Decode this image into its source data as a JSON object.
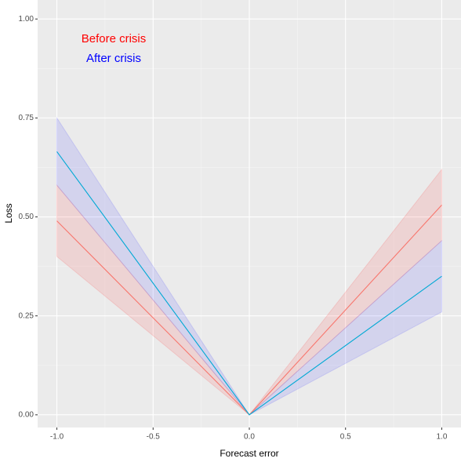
{
  "chart_data": {
    "type": "ribbon-line",
    "x": [
      -1.0,
      0.0,
      1.0
    ],
    "series": [
      {
        "name": "Before crisis",
        "color": "#F8766D",
        "fill": "#ff0000",
        "label_color": "#ff0000",
        "values": [
          0.49,
          0.0,
          0.53
        ],
        "lower": [
          0.4,
          0.0,
          0.44
        ],
        "upper": [
          0.58,
          0.0,
          0.62
        ]
      },
      {
        "name": "After crisis",
        "color": "#00A9D4",
        "fill": "#0000ff",
        "label_color": "#0000ff",
        "values": [
          0.665,
          0.0,
          0.35
        ],
        "lower": [
          0.58,
          0.0,
          0.26
        ],
        "upper": [
          0.75,
          0.0,
          0.44
        ]
      }
    ],
    "xlabel": "Forecast error",
    "ylabel": "Loss",
    "xlim": [
      -1.1,
      1.1
    ],
    "ylim": [
      -0.032,
      1.048
    ],
    "xticks": [
      {
        "value": -1.0,
        "label": "-1.0"
      },
      {
        "value": -0.5,
        "label": "-0.5"
      },
      {
        "value": 0.0,
        "label": "0.0"
      },
      {
        "value": 0.5,
        "label": "0.5"
      },
      {
        "value": 1.0,
        "label": "1.0"
      }
    ],
    "yticks": [
      {
        "value": 0.0,
        "label": "0.00"
      },
      {
        "value": 0.25,
        "label": "0.25"
      },
      {
        "value": 0.5,
        "label": "0.50"
      },
      {
        "value": 0.75,
        "label": "0.75"
      },
      {
        "value": 1.0,
        "label": "1.00"
      }
    ],
    "xminorticks": [
      -0.75,
      -0.25,
      0.25,
      0.75
    ],
    "yminorticks": [
      0.125,
      0.375,
      0.625,
      0.875
    ],
    "grid": true
  }
}
